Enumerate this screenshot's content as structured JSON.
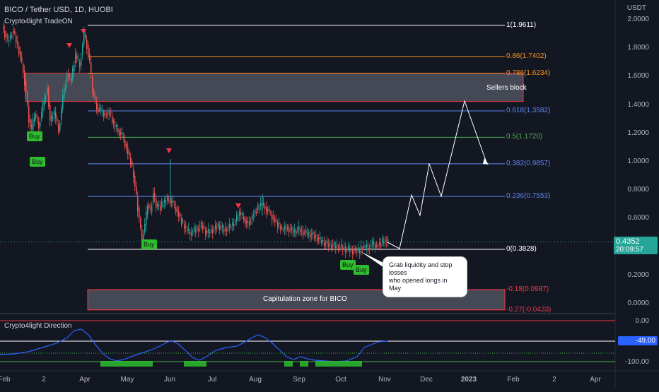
{
  "header": {
    "symbol_title": "BICO / Tether USD, 1D, HUOBI",
    "indicator_name": "Crypto4light TradeON"
  },
  "price_axis": {
    "currency": "USDT",
    "labels": [
      "2.0000",
      "1.8000",
      "1.6000",
      "1.4000",
      "1.2000",
      "1.0000",
      "0.8000",
      "0.6000",
      "0.4000",
      "0.2000",
      "0.0000"
    ]
  },
  "current_price": {
    "value": "0.4352",
    "countdown": "20:09:57"
  },
  "fib_levels": [
    {
      "label": "1(1.9611)",
      "color": "#ffffff",
      "price": 1.9611
    },
    {
      "label": "0.86(1.7402)",
      "color": "#f7931a",
      "price": 1.7402
    },
    {
      "label": "0.786(1.6234)",
      "color": "#f7931a",
      "price": 1.6234
    },
    {
      "label": "0.618(1.3582)",
      "color": "#5b86f5",
      "price": 1.3582
    },
    {
      "label": "0.5(1.1720)",
      "color": "#4caf50",
      "price": 1.172
    },
    {
      "label": "0.382(0.9857)",
      "color": "#5b86f5",
      "price": 0.9857
    },
    {
      "label": "0.236(0.7553)",
      "color": "#5b86f5",
      "price": 0.7553
    },
    {
      "label": "0(0.3828)",
      "color": "#ffffff",
      "price": 0.3828
    },
    {
      "label": "-0.18(0.0987)",
      "color": "#f23645",
      "price": 0.0987
    },
    {
      "label": "-0.27(-0.0433)",
      "color": "#f23645",
      "price": -0.0433
    }
  ],
  "zones": {
    "sellers": "Sellers block",
    "capitulation": "Capitulation zone for BICO"
  },
  "callout": {
    "line1": "Grab liquidity and stop losses",
    "line2": "who opened longs in May"
  },
  "buy_label": "Buy",
  "time_axis": [
    "Feb",
    "2",
    "Apr",
    "May",
    "Jun",
    "Jul",
    "Aug",
    "Sep",
    "Oct",
    "Nov",
    "Dec",
    "2023",
    "Feb",
    "2",
    "Apr"
  ],
  "direction_panel": {
    "title": "Crypto4light Direction",
    "axis_labels": [
      "0.00",
      "-100.00"
    ],
    "current_value": "-49.00"
  },
  "colors": {
    "background": "#131722",
    "up": "#26a69a",
    "down": "#ef5350",
    "buy": "#2ebd2e",
    "zone_border": "#f23645",
    "direction_line": "#2962ff",
    "current_price_tag": "#26a69a",
    "indicator_tag": "#2962ff"
  }
}
